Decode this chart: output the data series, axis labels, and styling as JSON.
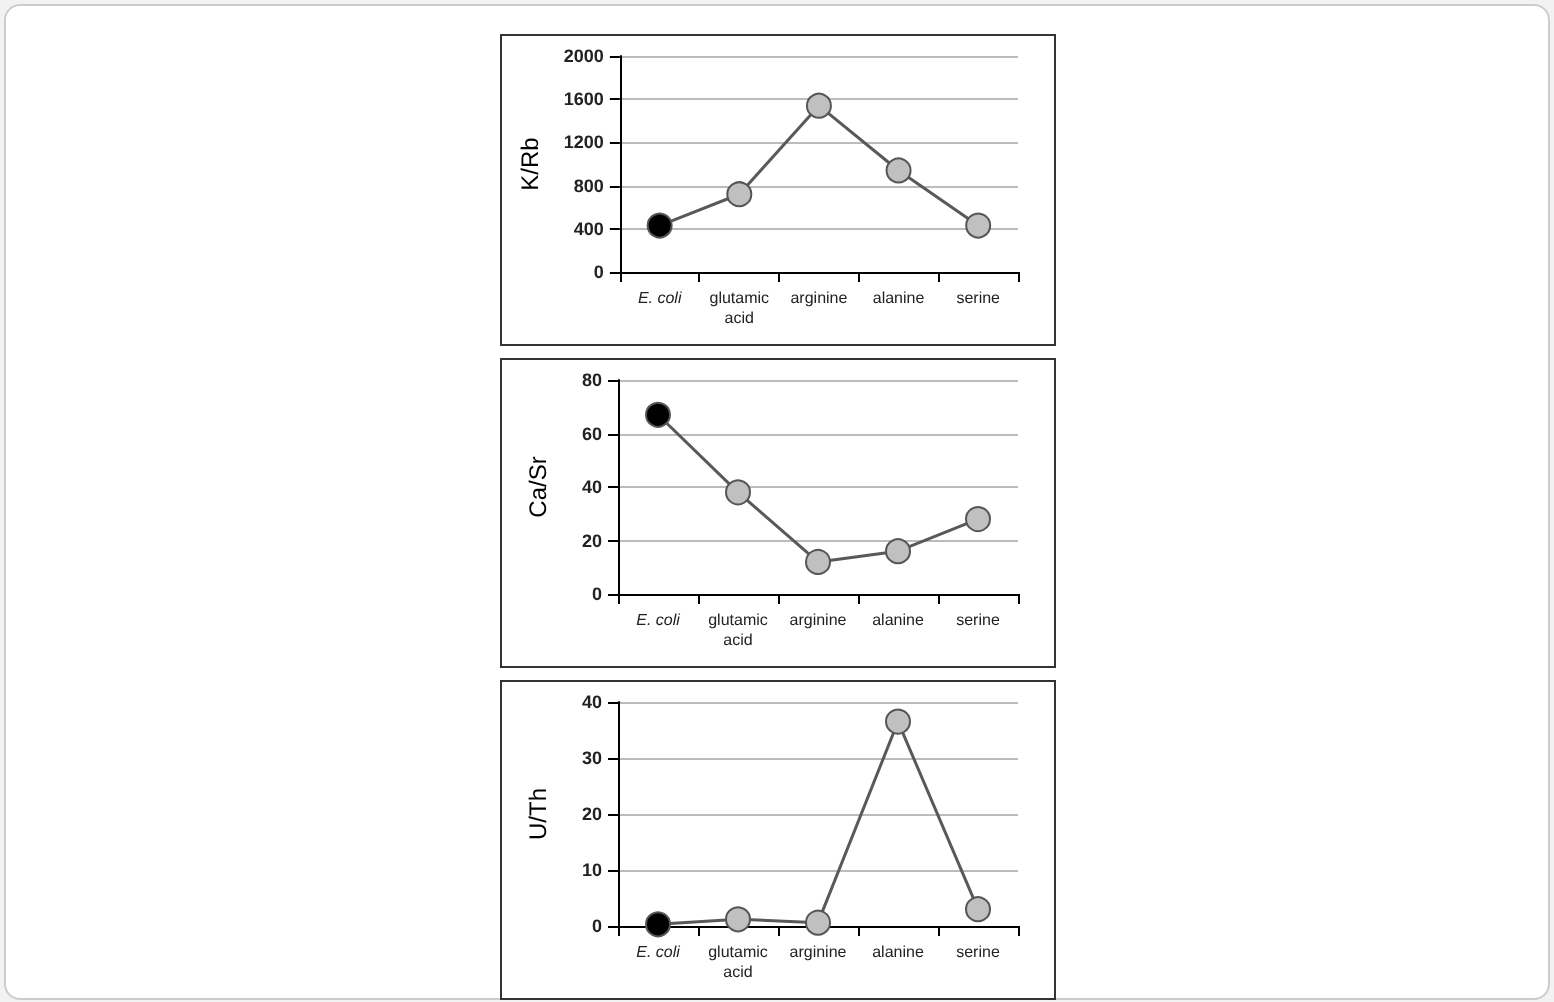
{
  "chart_data": [
    {
      "type": "line",
      "ylabel": "K/Rb",
      "categories": [
        "E. coli",
        "glutamic\nacid",
        "arginine",
        "alanine",
        "serine"
      ],
      "series": [
        {
          "color": "#595959",
          "colors": [
            "#000000",
            "#c0c0c0",
            "#c0c0c0",
            "#c0c0c0",
            "#c0c0c0"
          ],
          "values": [
            430,
            720,
            1540,
            940,
            430
          ]
        }
      ],
      "ylim": [
        0,
        2000
      ],
      "yticks": [
        0,
        400,
        800,
        1200,
        1600,
        2000
      ],
      "grid": "y",
      "marker": "circle",
      "line_style": "solid"
    },
    {
      "type": "line",
      "ylabel": "Ca/Sr",
      "categories": [
        "E. coli",
        "glutamic\nacid",
        "arginine",
        "alanine",
        "serine"
      ],
      "series": [
        {
          "color": "#595959",
          "colors": [
            "#000000",
            "#c0c0c0",
            "#c0c0c0",
            "#c0c0c0",
            "#c0c0c0"
          ],
          "values": [
            67,
            38,
            12,
            16,
            28
          ]
        }
      ],
      "ylim": [
        0,
        80
      ],
      "yticks": [
        0,
        20,
        40,
        60,
        80
      ],
      "grid": "y",
      "marker": "circle",
      "line_style": "solid"
    },
    {
      "type": "line",
      "ylabel": "U/Th",
      "categories": [
        "E. coli",
        "glutamic\nacid",
        "arginine",
        "alanine",
        "serine"
      ],
      "series": [
        {
          "color": "#595959",
          "colors": [
            "#000000",
            "#c0c0c0",
            "#c0c0c0",
            "#c0c0c0",
            "#c0c0c0"
          ],
          "values": [
            0.3,
            1.2,
            0.6,
            36.5,
            3
          ]
        }
      ],
      "ylim": [
        0,
        40
      ],
      "yticks": [
        0,
        10,
        20,
        30,
        40
      ],
      "grid": "y",
      "marker": "circle",
      "line_style": "solid"
    }
  ]
}
